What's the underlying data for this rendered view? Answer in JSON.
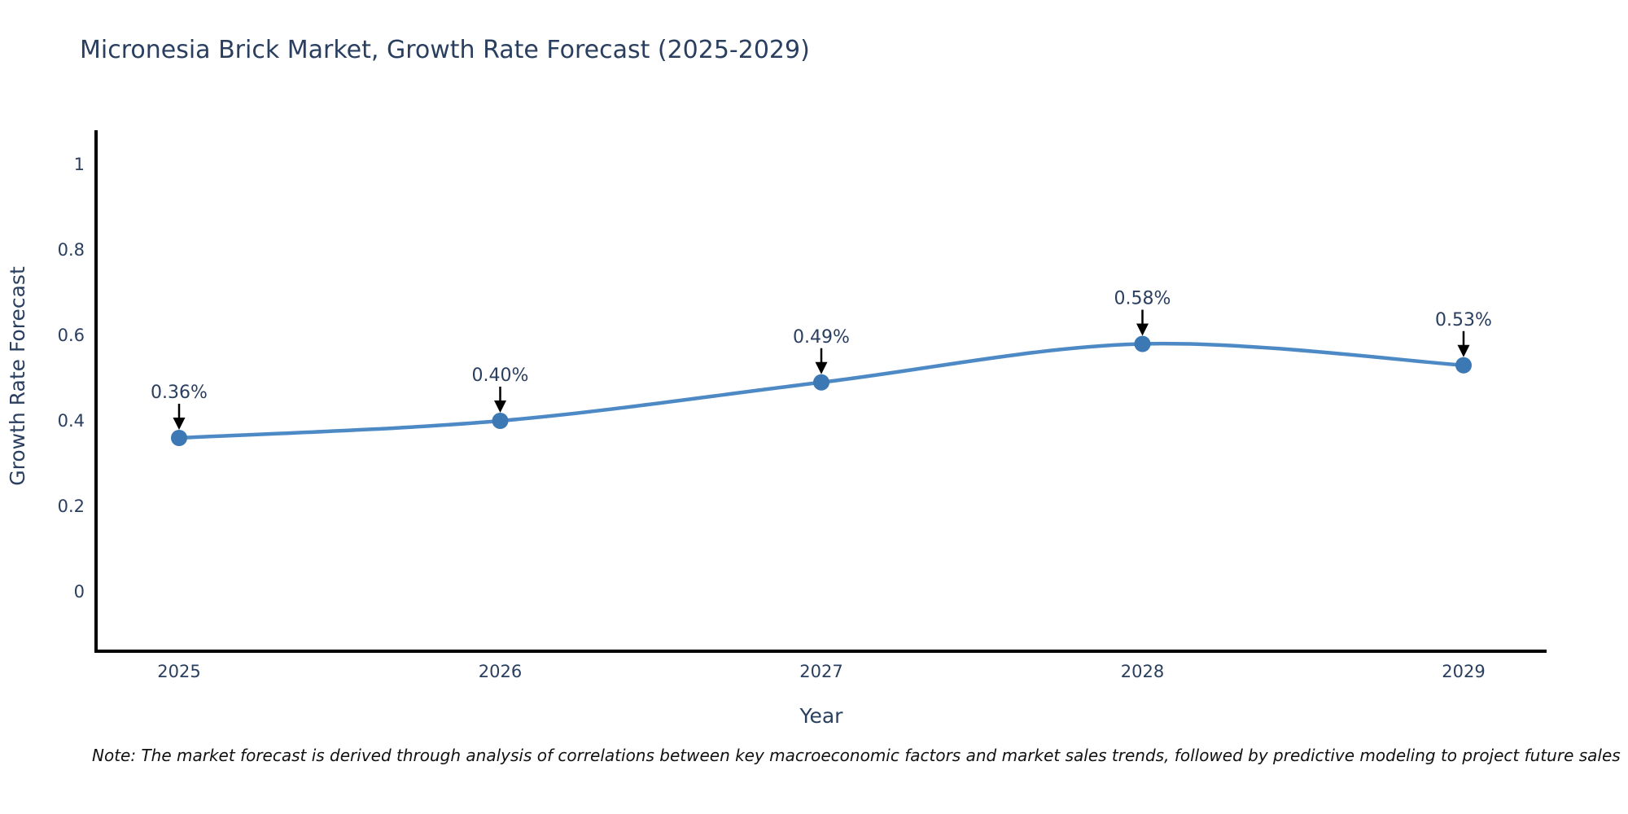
{
  "chart_data": {
    "type": "line",
    "title": "Micronesia Brick Market, Growth Rate Forecast (2025-2029)",
    "xlabel": "Year",
    "ylabel": "Growth Rate Forecast",
    "categories": [
      "2025",
      "2026",
      "2027",
      "2028",
      "2029"
    ],
    "series": [
      {
        "name": "Growth Rate Forecast",
        "values": [
          0.36,
          0.4,
          0.49,
          0.58,
          0.53
        ]
      }
    ],
    "point_labels": [
      "0.36%",
      "0.40%",
      "0.49%",
      "0.58%",
      "0.53%"
    ],
    "y_ticks": [
      "0",
      "0.2",
      "0.4",
      "0.6",
      "0.8",
      "1"
    ],
    "y_tick_values": [
      0,
      0.2,
      0.4,
      0.6,
      0.8,
      1
    ],
    "ylim": [
      -0.14,
      1.08
    ],
    "line_shape": "spline",
    "grid": false,
    "legend_position": "none",
    "colors": {
      "line": "#4d8ac5",
      "marker": "#3c78b4",
      "axis": "#000000",
      "text": "#2a3f5f",
      "arrow": "#000000"
    }
  },
  "note": {
    "text": "Note: The market forecast is derived through analysis of correlations between key macroeconomic factors and market sales trends, followed by predictive modeling to project future sales"
  }
}
